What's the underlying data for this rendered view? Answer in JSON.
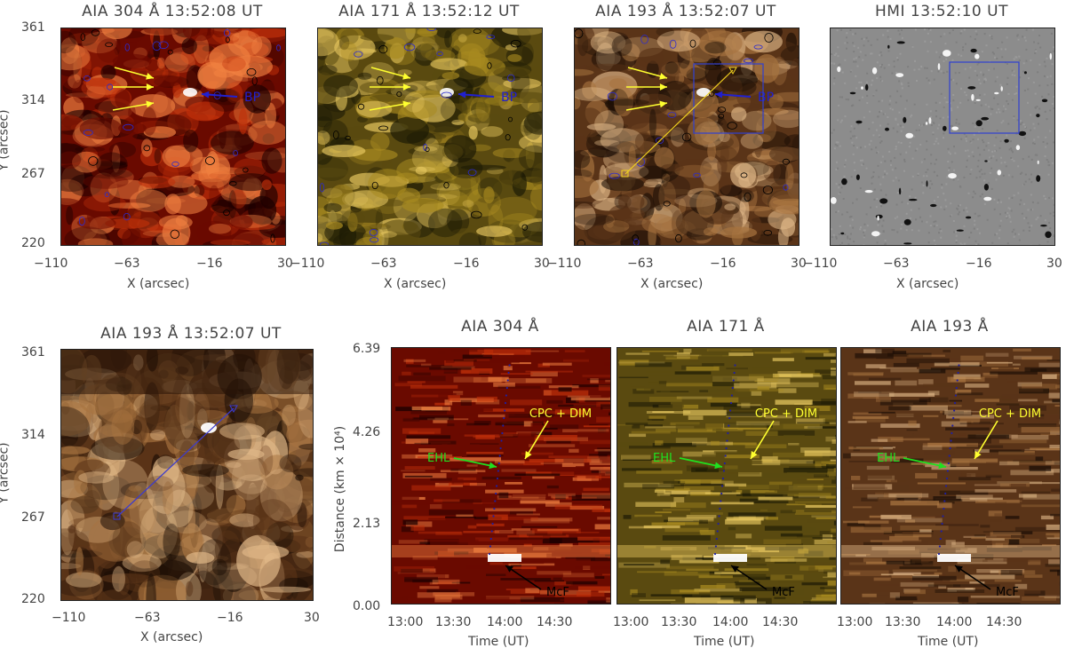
{
  "top_row": [
    {
      "title": "AIA 304 Å 13:52:08 UT",
      "theme": "aia304",
      "label_bp": "BP",
      "has_arrows": true,
      "has_box": false,
      "has_slit": false
    },
    {
      "title": "AIA 171 Å 13:52:12 UT",
      "theme": "aia171",
      "label_bp": "BP",
      "has_arrows": true,
      "has_box": false,
      "has_slit": false
    },
    {
      "title": "AIA 193 Å 13:52:07 UT",
      "theme": "aia193",
      "label_bp": "BP",
      "has_arrows": true,
      "has_box": true,
      "has_slit": true
    },
    {
      "title": "HMI 13:52:10 UT",
      "theme": "hmi",
      "label_bp": "",
      "has_arrows": false,
      "has_box": true,
      "has_slit": false
    }
  ],
  "top_axes": {
    "xlabel": "X (arcsec)",
    "ylabel": "Y (arcsec)",
    "xticks": [
      "−110",
      "−63",
      "−16",
      "30"
    ],
    "yticks": [
      "361",
      "314",
      "267",
      "220"
    ]
  },
  "zoom_panel": {
    "title": "AIA 193 Å 13:52:07 UT",
    "xlabel": "X (arcsec)",
    "ylabel": "Y (arcsec)",
    "xticks": [
      "−110",
      "−63",
      "−16",
      "30"
    ],
    "yticks": [
      "361",
      "314",
      "267",
      "220"
    ]
  },
  "time_distance": {
    "ylabel": "Distance (km × 10⁴)",
    "xlabel": "Time (UT)",
    "yticks": [
      "6.39",
      "4.26",
      "2.13",
      "0.00"
    ],
    "xticks": [
      "13:00",
      "13:30",
      "14:00",
      "14:30"
    ],
    "panels": [
      {
        "title": "AIA 304 Å",
        "theme": "aia304"
      },
      {
        "title": "AIA 171 Å",
        "theme": "aia171"
      },
      {
        "title": "AIA 193 Å",
        "theme": "aia193"
      }
    ],
    "annotations": {
      "cpc": "CPC + DIM",
      "ehl": "EHL",
      "mcf": "McF"
    }
  },
  "colors": {
    "aia304": [
      "#1a0000",
      "#6a0a00",
      "#c0300a",
      "#f08040"
    ],
    "aia171": [
      "#1c1a05",
      "#5a4a10",
      "#a88a20",
      "#e8c860"
    ],
    "aia193": [
      "#1a0d05",
      "#5a3418",
      "#a87440",
      "#e0b888"
    ],
    "hmi": [
      "#202020",
      "#808080",
      "#a0a0a0",
      "#f0f0f0"
    ],
    "arrow_yellow": "#ffff30",
    "arrow_blue": "#2020d0",
    "arrow_green": "#20e020",
    "box_blue": "#3040d0"
  }
}
